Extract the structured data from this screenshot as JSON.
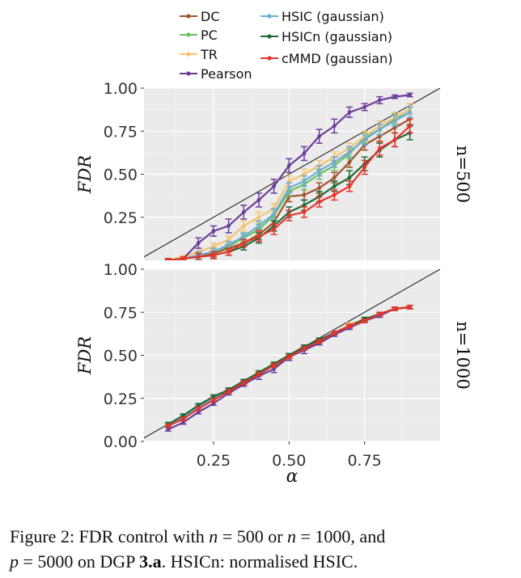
{
  "chart_data": [
    {
      "type": "line",
      "facet_label": "n=500",
      "ylabel": "FDR",
      "xlabel": "α",
      "xlim": [
        0.02,
        1.0
      ],
      "ylim": [
        0.0,
        1.0
      ],
      "x_ticks": [
        0.25,
        0.5,
        0.75
      ],
      "x_tick_labels": [
        "0.25",
        "0.50",
        "0.75"
      ],
      "y_ticks": [
        0.25,
        0.5,
        0.75,
        1.0
      ],
      "y_tick_labels": [
        "0.25",
        "0.50",
        "0.75",
        "1.00"
      ],
      "reference_line": "y = x",
      "grid": true,
      "x": [
        0.1,
        0.15,
        0.2,
        0.25,
        0.3,
        0.35,
        0.4,
        0.45,
        0.5,
        0.55,
        0.6,
        0.65,
        0.7,
        0.75,
        0.8,
        0.85,
        0.9
      ],
      "series": [
        {
          "name": "DC",
          "color": "#a0522d",
          "values": [
            0.0,
            0.01,
            0.03,
            0.04,
            0.07,
            0.1,
            0.15,
            0.22,
            0.37,
            0.38,
            0.42,
            0.48,
            0.57,
            0.67,
            0.72,
            0.77,
            0.82
          ],
          "err": [
            0.01,
            0.01,
            0.02,
            0.02,
            0.02,
            0.02,
            0.03,
            0.03,
            0.03,
            0.03,
            0.03,
            0.03,
            0.03,
            0.03,
            0.03,
            0.03,
            0.03
          ]
        },
        {
          "name": "PC",
          "color": "#6abf5e",
          "values": [
            0.0,
            0.01,
            0.03,
            0.05,
            0.08,
            0.13,
            0.18,
            0.26,
            0.4,
            0.44,
            0.5,
            0.55,
            0.62,
            0.71,
            0.76,
            0.82,
            0.86
          ],
          "err": [
            0.01,
            0.01,
            0.02,
            0.02,
            0.02,
            0.02,
            0.03,
            0.03,
            0.03,
            0.03,
            0.03,
            0.03,
            0.03,
            0.03,
            0.03,
            0.03,
            0.03
          ]
        },
        {
          "name": "TR",
          "color": "#f5c26b",
          "values": [
            0.0,
            0.02,
            0.05,
            0.08,
            0.12,
            0.2,
            0.25,
            0.3,
            0.46,
            0.5,
            0.55,
            0.6,
            0.65,
            0.72,
            0.78,
            0.83,
            0.88
          ],
          "err": [
            0.01,
            0.01,
            0.02,
            0.02,
            0.02,
            0.03,
            0.03,
            0.03,
            0.03,
            0.03,
            0.03,
            0.03,
            0.03,
            0.03,
            0.03,
            0.03,
            0.03
          ]
        },
        {
          "name": "Pearson",
          "color": "#6a3d9a",
          "values": [
            0.0,
            0.01,
            0.1,
            0.17,
            0.2,
            0.28,
            0.35,
            0.43,
            0.55,
            0.62,
            0.72,
            0.78,
            0.86,
            0.89,
            0.93,
            0.95,
            0.96
          ],
          "err": [
            0.01,
            0.01,
            0.03,
            0.03,
            0.04,
            0.04,
            0.04,
            0.04,
            0.04,
            0.04,
            0.04,
            0.04,
            0.03,
            0.02,
            0.02,
            0.01,
            0.01
          ]
        },
        {
          "name": "HSIC (gaussian)",
          "color": "#6baed6",
          "values": [
            0.0,
            0.01,
            0.03,
            0.05,
            0.09,
            0.14,
            0.2,
            0.27,
            0.42,
            0.46,
            0.52,
            0.57,
            0.63,
            0.7,
            0.76,
            0.81,
            0.86
          ],
          "err": [
            0.01,
            0.01,
            0.02,
            0.02,
            0.02,
            0.02,
            0.03,
            0.03,
            0.03,
            0.03,
            0.03,
            0.03,
            0.03,
            0.03,
            0.03,
            0.03,
            0.03
          ]
        },
        {
          "name": "HSICn (gaussian)",
          "color": "#1b6b34",
          "values": [
            0.0,
            0.01,
            0.02,
            0.03,
            0.05,
            0.08,
            0.13,
            0.2,
            0.28,
            0.32,
            0.37,
            0.43,
            0.48,
            0.56,
            0.64,
            0.7,
            0.74
          ],
          "err": [
            0.01,
            0.01,
            0.02,
            0.02,
            0.02,
            0.02,
            0.03,
            0.03,
            0.03,
            0.03,
            0.03,
            0.03,
            0.04,
            0.04,
            0.04,
            0.04,
            0.04
          ]
        },
        {
          "name": "cMMD (gaussian)",
          "color": "#e8332a",
          "values": [
            0.0,
            0.01,
            0.02,
            0.03,
            0.05,
            0.1,
            0.14,
            0.18,
            0.26,
            0.28,
            0.34,
            0.38,
            0.43,
            0.54,
            0.65,
            0.7,
            0.78
          ],
          "err": [
            0.01,
            0.01,
            0.02,
            0.02,
            0.02,
            0.02,
            0.03,
            0.03,
            0.03,
            0.03,
            0.03,
            0.03,
            0.03,
            0.04,
            0.04,
            0.04,
            0.04
          ]
        }
      ]
    },
    {
      "type": "line",
      "facet_label": "n=1000",
      "ylabel": "FDR",
      "xlabel": "α",
      "xlim": [
        0.02,
        1.0
      ],
      "ylim": [
        0.0,
        1.0
      ],
      "x_ticks": [
        0.25,
        0.5,
        0.75
      ],
      "x_tick_labels": [
        "0.25",
        "0.50",
        "0.75"
      ],
      "y_ticks": [
        0.0,
        0.25,
        0.5,
        0.75,
        1.0
      ],
      "y_tick_labels": [
        "0.00",
        "0.25",
        "0.50",
        "0.75",
        "1.00"
      ],
      "reference_line": "y = x",
      "grid": true,
      "x": [
        0.1,
        0.15,
        0.2,
        0.25,
        0.3,
        0.35,
        0.4,
        0.45,
        0.5,
        0.55,
        0.6,
        0.65,
        0.7,
        0.75,
        0.8,
        0.85,
        0.9
      ],
      "series": [
        {
          "name": "DC",
          "color": "#a0522d",
          "values": [
            0.1,
            0.14,
            0.2,
            0.25,
            0.3,
            0.34,
            0.4,
            0.44,
            0.5,
            0.54,
            0.59,
            0.63,
            0.67,
            0.71,
            0.74,
            0.77,
            0.78
          ],
          "err": [
            0.01,
            0.01,
            0.01,
            0.01,
            0.01,
            0.01,
            0.01,
            0.01,
            0.01,
            0.01,
            0.01,
            0.01,
            0.01,
            0.01,
            0.01,
            0.01,
            0.01
          ]
        },
        {
          "name": "PC",
          "color": "#6abf5e",
          "values": [
            0.1,
            0.14,
            0.2,
            0.25,
            0.3,
            0.34,
            0.4,
            0.44,
            0.5,
            0.54,
            0.59,
            0.63,
            0.67,
            0.71,
            0.74,
            0.77,
            0.78
          ],
          "err": [
            0.01,
            0.01,
            0.01,
            0.01,
            0.01,
            0.01,
            0.01,
            0.01,
            0.01,
            0.01,
            0.01,
            0.01,
            0.01,
            0.01,
            0.01,
            0.01,
            0.01
          ]
        },
        {
          "name": "TR",
          "color": "#f5c26b",
          "values": [
            0.1,
            0.14,
            0.2,
            0.26,
            0.3,
            0.35,
            0.4,
            0.45,
            0.5,
            0.55,
            0.59,
            0.63,
            0.68,
            0.71,
            0.74,
            0.77,
            0.78
          ],
          "err": [
            0.01,
            0.01,
            0.01,
            0.01,
            0.01,
            0.01,
            0.01,
            0.01,
            0.01,
            0.01,
            0.01,
            0.01,
            0.01,
            0.01,
            0.01,
            0.01,
            0.01
          ]
        },
        {
          "name": "Pearson",
          "color": "#6a3d9a",
          "values": [
            0.07,
            0.11,
            0.17,
            0.22,
            0.28,
            0.33,
            0.38,
            0.42,
            0.49,
            0.53,
            0.57,
            0.62,
            0.66,
            0.7,
            0.73,
            0.77,
            0.78
          ],
          "err": [
            0.01,
            0.01,
            0.01,
            0.01,
            0.01,
            0.01,
            0.02,
            0.02,
            0.02,
            0.02,
            0.01,
            0.01,
            0.01,
            0.01,
            0.01,
            0.01,
            0.01
          ]
        },
        {
          "name": "HSIC (gaussian)",
          "color": "#6baed6",
          "values": [
            0.1,
            0.14,
            0.2,
            0.25,
            0.3,
            0.34,
            0.4,
            0.44,
            0.5,
            0.54,
            0.59,
            0.63,
            0.67,
            0.71,
            0.74,
            0.77,
            0.78
          ],
          "err": [
            0.01,
            0.01,
            0.01,
            0.01,
            0.01,
            0.01,
            0.01,
            0.01,
            0.01,
            0.01,
            0.01,
            0.01,
            0.01,
            0.01,
            0.01,
            0.01,
            0.01
          ]
        },
        {
          "name": "HSICn (gaussian)",
          "color": "#1b6b34",
          "values": [
            0.1,
            0.15,
            0.21,
            0.26,
            0.3,
            0.35,
            0.4,
            0.45,
            0.5,
            0.55,
            0.59,
            0.63,
            0.67,
            0.71,
            0.74,
            0.77,
            0.78
          ],
          "err": [
            0.01,
            0.01,
            0.01,
            0.01,
            0.01,
            0.01,
            0.01,
            0.01,
            0.01,
            0.01,
            0.01,
            0.01,
            0.01,
            0.01,
            0.01,
            0.01,
            0.01
          ]
        },
        {
          "name": "cMMD (gaussian)",
          "color": "#e8332a",
          "values": [
            0.09,
            0.13,
            0.19,
            0.24,
            0.29,
            0.34,
            0.39,
            0.44,
            0.49,
            0.54,
            0.58,
            0.63,
            0.67,
            0.7,
            0.74,
            0.77,
            0.78
          ],
          "err": [
            0.01,
            0.01,
            0.01,
            0.01,
            0.01,
            0.01,
            0.01,
            0.01,
            0.01,
            0.01,
            0.01,
            0.01,
            0.01,
            0.01,
            0.01,
            0.01,
            0.01
          ]
        }
      ]
    }
  ],
  "legend": [
    {
      "label": "DC",
      "color": "#a0522d"
    },
    {
      "label": "PC",
      "color": "#6abf5e"
    },
    {
      "label": "TR",
      "color": "#f5c26b"
    },
    {
      "label": "Pearson",
      "color": "#6a3d9a"
    },
    {
      "label": "HSIC (gaussian)",
      "color": "#6baed6"
    },
    {
      "label": "HSICn (gaussian)",
      "color": "#1b6b34"
    },
    {
      "label": "cMMD (gaussian)",
      "color": "#e8332a"
    }
  ],
  "caption": {
    "line1_a": "Figure 2: FDR control with ",
    "line1_n": "n",
    "line1_b": " = 500 or ",
    "line1_n2": "n",
    "line1_c": " = 1000, and",
    "line2_p": "p",
    "line2_a": " = 5000 on DGP ",
    "line2_dgp": "3.a",
    "line2_b": ". HSICn: normalised HSIC."
  }
}
